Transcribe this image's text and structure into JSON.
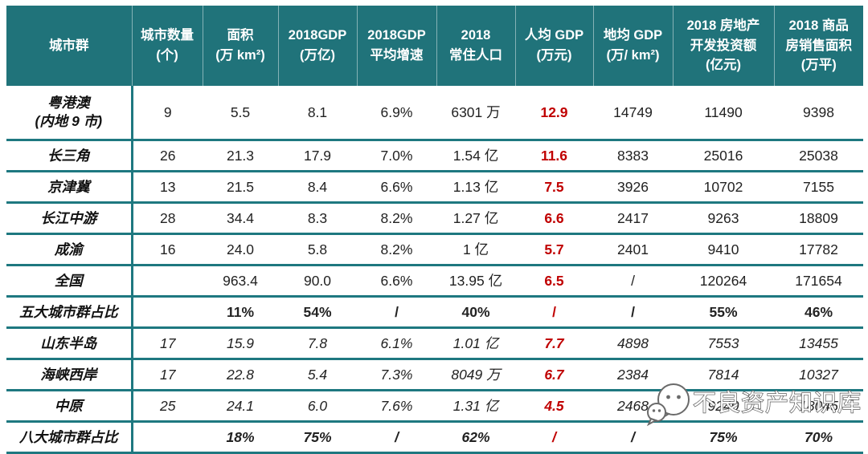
{
  "table": {
    "headers": [
      {
        "lines": [
          "城市群"
        ]
      },
      {
        "lines": [
          "城市数量",
          "(个)"
        ]
      },
      {
        "lines": [
          "面积",
          "(万 km²)"
        ]
      },
      {
        "lines": [
          "2018GDP",
          "(万亿)"
        ]
      },
      {
        "lines": [
          "2018GDP",
          "平均增速"
        ]
      },
      {
        "lines": [
          "2018",
          "常住人口"
        ]
      },
      {
        "lines": [
          "人均 GDP",
          "(万元)"
        ]
      },
      {
        "lines": [
          "地均 GDP",
          "(万/ km²)"
        ]
      },
      {
        "lines": [
          "2018 房地产",
          "开发投资额",
          "(亿元)"
        ]
      },
      {
        "lines": [
          "2018 商品",
          "房销售面积",
          "(万平)"
        ]
      }
    ],
    "rows": [
      {
        "name_lines": [
          "粤港澳",
          "(内地 9 市)"
        ],
        "style": "plain",
        "tall": true,
        "cells": [
          "9",
          "5.5",
          "8.1",
          "6.9%",
          "6301 万",
          "12.9",
          "14749",
          "11490",
          "9398"
        ]
      },
      {
        "name_lines": [
          "长三角"
        ],
        "style": "plain",
        "cells": [
          "26",
          "21.3",
          "17.9",
          "7.0%",
          "1.54 亿",
          "11.6",
          "8383",
          "25016",
          "25038"
        ]
      },
      {
        "name_lines": [
          "京津冀"
        ],
        "style": "plain",
        "cells": [
          "13",
          "21.5",
          "8.4",
          "6.6%",
          "1.13 亿",
          "7.5",
          "3926",
          "10702",
          "7155"
        ]
      },
      {
        "name_lines": [
          "长江中游"
        ],
        "style": "plain",
        "cells": [
          "28",
          "34.4",
          "8.3",
          "8.2%",
          "1.27 亿",
          "6.6",
          "2417",
          "9263",
          "18809"
        ]
      },
      {
        "name_lines": [
          "成渝"
        ],
        "style": "plain",
        "cells": [
          "16",
          "24.0",
          "5.8",
          "8.2%",
          "1 亿",
          "5.7",
          "2401",
          "9410",
          "17782"
        ]
      },
      {
        "name_lines": [
          "全国"
        ],
        "style": "plain",
        "cells": [
          "",
          "963.4",
          "90.0",
          "6.6%",
          "13.95 亿",
          "6.5",
          "/",
          "120264",
          "171654"
        ]
      },
      {
        "name_lines": [
          "五大城市群占比"
        ],
        "style": "summary",
        "cells": [
          "",
          "11%",
          "54%",
          "/",
          "40%",
          "/",
          "/",
          "55%",
          "46%"
        ]
      },
      {
        "name_lines": [
          "山东半岛"
        ],
        "style": "ext",
        "cells": [
          "17",
          "15.9",
          "7.8",
          "6.1%",
          "1.01 亿",
          "7.7",
          "4898",
          "7553",
          "13455"
        ]
      },
      {
        "name_lines": [
          "海峡西岸"
        ],
        "style": "ext",
        "cells": [
          "17",
          "22.8",
          "5.4",
          "7.3%",
          "8049 万",
          "6.7",
          "2384",
          "7814",
          "10327"
        ]
      },
      {
        "name_lines": [
          "中原"
        ],
        "style": "ext",
        "cells": [
          "25",
          "24.1",
          "6.0",
          "7.6%",
          "1.31 亿",
          "4.5",
          "2468",
          "9240",
          "18045"
        ]
      },
      {
        "name_lines": [
          "八大城市群占比"
        ],
        "style": "ext-summary",
        "cells": [
          "",
          "18%",
          "75%",
          "/",
          "62%",
          "/",
          "/",
          "75%",
          "70%"
        ]
      }
    ],
    "red_column_index": 5
  },
  "watermark": {
    "text": "不良资产知识库"
  },
  "colors": {
    "header_bg": "#20737A",
    "line": "#1E7880",
    "highlight_red": "#C00000",
    "body_text": "#222222"
  }
}
